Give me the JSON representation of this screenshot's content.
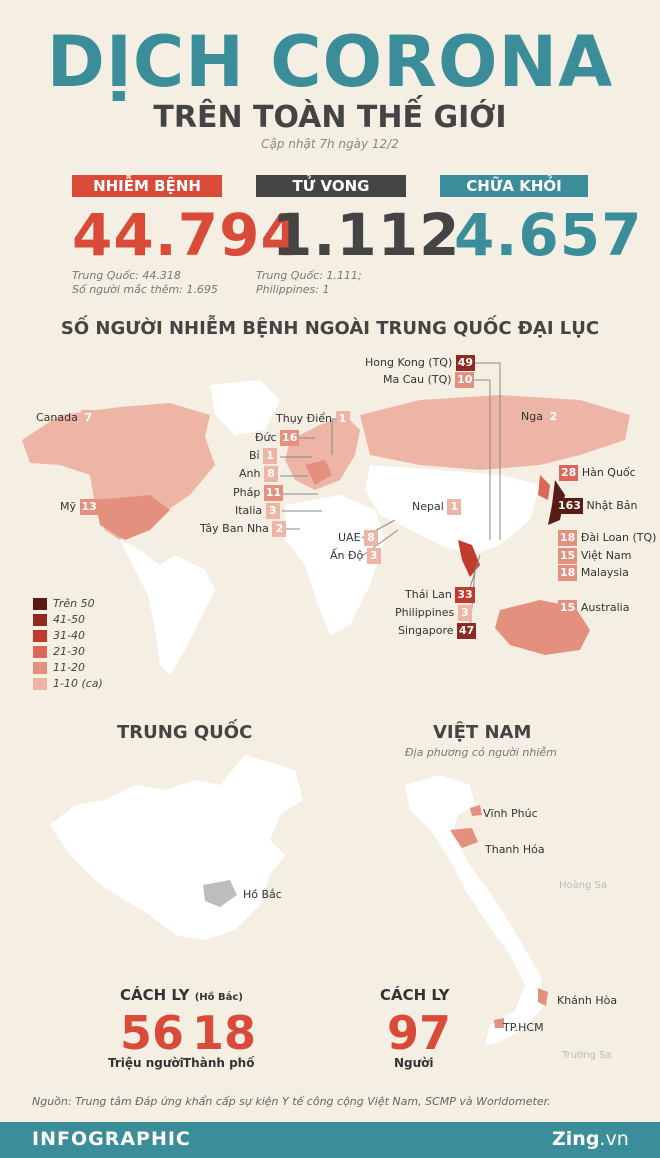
{
  "header": {
    "title": "DỊCH CORONA",
    "subtitle": "TRÊN TOÀN THẾ GIỚI",
    "updated": "Cập nhật 7h ngày 12/2"
  },
  "stats": {
    "infected": {
      "label": "NHIỄM BỆNH",
      "value": "44.794",
      "note1": "Trung Quốc: 44.318",
      "note2": "Số người mắc thêm: 1.695",
      "color": "#d94a39"
    },
    "deaths": {
      "label": "TỬ VONG",
      "value": "1.112",
      "note1": "Trung Quốc: 1.111;",
      "note2": "Philippines: 1",
      "color": "#444444"
    },
    "recovered": {
      "label": "CHỮA KHỎI",
      "value": "4.657",
      "color": "#3b8e99"
    }
  },
  "world_map": {
    "title": "SỐ NGƯỜI NHIỄM BỆNH NGOÀI TRUNG QUỐC ĐẠI LỤC",
    "countries": [
      {
        "name": "Hong Kong (TQ)",
        "count": "49"
      },
      {
        "name": "Ma Cau (TQ)",
        "count": "10"
      },
      {
        "name": "Canada",
        "count": "7"
      },
      {
        "name": "Thụy Điển",
        "count": "1"
      },
      {
        "name": "Nga",
        "count": "2"
      },
      {
        "name": "Đức",
        "count": "16"
      },
      {
        "name": "Bỉ",
        "count": "1"
      },
      {
        "name": "Anh",
        "count": "8"
      },
      {
        "name": "Hàn Quốc",
        "count": "28"
      },
      {
        "name": "Pháp",
        "count": "11"
      },
      {
        "name": "Nhật Bản",
        "count": "163"
      },
      {
        "name": "Mỹ",
        "count": "13"
      },
      {
        "name": "Italia",
        "count": "3"
      },
      {
        "name": "Nepal",
        "count": "1"
      },
      {
        "name": "Tây Ban Nha",
        "count": "2"
      },
      {
        "name": "UAE",
        "count": "8"
      },
      {
        "name": "Đài Loan (TQ)",
        "count": "18"
      },
      {
        "name": "Ấn Độ",
        "count": "3"
      },
      {
        "name": "Việt Nam",
        "count": "15"
      },
      {
        "name": "Malaysia",
        "count": "18"
      },
      {
        "name": "Thái Lan",
        "count": "33"
      },
      {
        "name": "Australia",
        "count": "15"
      },
      {
        "name": "Philippines",
        "count": "3"
      },
      {
        "name": "Singapore",
        "count": "47"
      }
    ],
    "legend": [
      {
        "label": "Trên 50",
        "color": "#5a1a16"
      },
      {
        "label": "41-50",
        "color": "#8e2a22"
      },
      {
        "label": "31-40",
        "color": "#c23a2e"
      },
      {
        "label": "21-30",
        "color": "#d9685a"
      },
      {
        "label": "11-20",
        "color": "#e3907f"
      },
      {
        "label": "1-10 (ca)",
        "color": "#eeb5a6"
      }
    ]
  },
  "china": {
    "title": "TRUNG QUỐC",
    "region": "Hồ Bắc",
    "quarantine_label": "CÁCH LY",
    "quarantine_sub": "(Hồ Bắc)",
    "people_value": "56",
    "people_label": "Triệu người",
    "cities_value": "18",
    "cities_label": "Thành phố"
  },
  "vietnam": {
    "title": "VIỆT NAM",
    "subtitle": "Địa phương có người nhiễm",
    "places": [
      "Vĩnh Phúc",
      "Thanh Hóa",
      "Khánh Hòa",
      "TP.HCM"
    ],
    "islands": [
      "Hoàng Sa",
      "Trường Sa"
    ],
    "quarantine_label": "CÁCH LY",
    "value": "97",
    "value_label": "Người"
  },
  "source": "Nguồn: Trung tâm Đáp ứng khẩn cấp sự kiện Y tế công cộng Việt Nam, SCMP và Worldometer.",
  "footer": {
    "label": "INFOGRAPHIC",
    "brand": "Zing",
    "brand_suffix": ".vn"
  }
}
